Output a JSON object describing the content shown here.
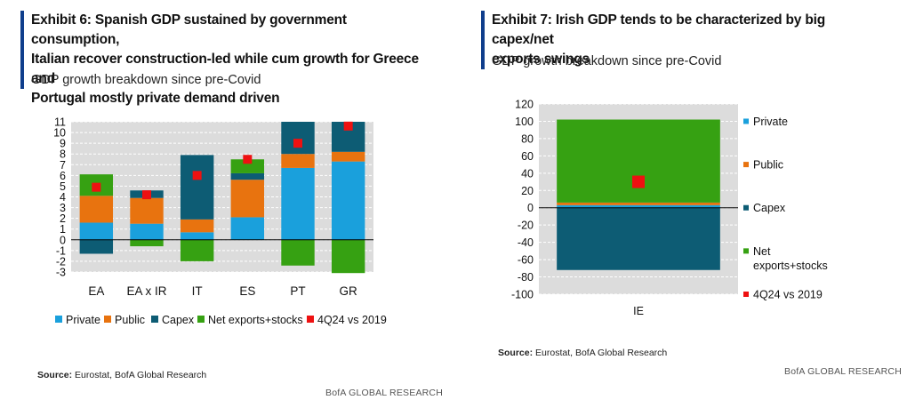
{
  "left": {
    "title_lines": [
      "Exhibit 6: Spanish GDP sustained by government consumption,",
      "Italian recover construction-led while cum growth for Greece and",
      "Portugal mostly private demand driven"
    ],
    "subtitle": "GDP growth breakdown since pre-Covid",
    "source_label": "Source:",
    "source_text": "Eurostat, BofA Global Research"
  },
  "right": {
    "title_lines": [
      "Exhibit 7: Irish GDP tends to be characterized by big capex/net",
      "exports swings"
    ],
    "subtitle": "GDP growth breakdown since pre-Covid",
    "source_label": "Source:",
    "source_text": "Eurostat, BofA Global Research"
  },
  "brand_right": "BofA GLOBAL RESEARCH",
  "brand_bottom": "BofA GLOBAL RESEARCH",
  "colors": {
    "private": "#1aa0dc",
    "public": "#e8730f",
    "capex": "#0d5c74",
    "net_exports": "#36a112",
    "marker": "#ee1111",
    "plot_bg": "#dcdcdc",
    "title_bar": "#0f3e8c"
  },
  "chart_data": [
    {
      "type": "bar",
      "stacked": true,
      "categories": [
        "EA",
        "EA x IR",
        "IT",
        "ES",
        "PT",
        "GR"
      ],
      "series": [
        {
          "name": "Private",
          "values": [
            1.6,
            1.5,
            0.7,
            2.1,
            6.7,
            7.3
          ]
        },
        {
          "name": "Public",
          "values": [
            2.5,
            2.4,
            1.2,
            3.5,
            1.3,
            0.9
          ]
        },
        {
          "name": "Capex",
          "values": [
            -1.3,
            0.7,
            6.0,
            0.6,
            3.0,
            2.8
          ]
        },
        {
          "name": "Net exports+stocks",
          "values": [
            2.0,
            -0.6,
            -2.0,
            1.3,
            -2.4,
            -3.1
          ]
        }
      ],
      "markers": {
        "name": "4Q24 vs 2019",
        "values": [
          4.9,
          4.2,
          6.0,
          7.5,
          9.0,
          10.6
        ]
      },
      "ylim": [
        -3,
        11
      ],
      "yticks": [
        "-3",
        "-2",
        "-1",
        "0",
        "1",
        "2",
        "3",
        "4",
        "5",
        "6",
        "7",
        "8",
        "9",
        "10",
        "11"
      ],
      "legend_position": "bottom"
    },
    {
      "type": "bar",
      "stacked": true,
      "categories": [
        "IE"
      ],
      "series": [
        {
          "name": "Private",
          "values": [
            3
          ]
        },
        {
          "name": "Public",
          "values": [
            3
          ]
        },
        {
          "name": "Capex",
          "values": [
            -72
          ]
        },
        {
          "name": "Net\nexports+stocks",
          "values": [
            96
          ]
        }
      ],
      "markers": {
        "name": "4Q24 vs 2019",
        "values": [
          30
        ]
      },
      "ylim": [
        -100,
        120
      ],
      "yticks": [
        "-100",
        "-80",
        "-60",
        "-40",
        "-20",
        "0",
        "20",
        "40",
        "60",
        "80",
        "100",
        "120"
      ],
      "legend_position": "right"
    }
  ]
}
